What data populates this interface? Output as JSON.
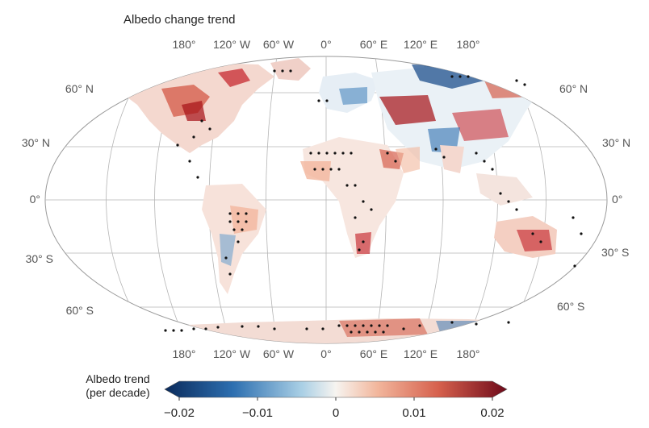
{
  "title": "Albedo change trend",
  "graticule": {
    "lon_labels": [
      "180°",
      "120° W",
      "60° W",
      "0°",
      "60° E",
      "120° E",
      "180°"
    ],
    "lat_labels_left": [
      "60° N",
      "30° N",
      "0°",
      "30° S",
      "60° S"
    ],
    "lat_labels_right": [
      "60° N",
      "30° N",
      "0°",
      "30° S",
      "60° S"
    ]
  },
  "colorbar": {
    "label_line1": "Albedo trend",
    "label_line2": "(per decade)",
    "ticks": [
      "−0.02",
      "−0.01",
      "0",
      "0.01",
      "0.02"
    ],
    "min": -0.02,
    "max": 0.02,
    "colors": [
      "#0b2b5c",
      "#2d6fb0",
      "#a9cfe5",
      "#f7f4f0",
      "#f2b79d",
      "#d6604d",
      "#6e0a1a"
    ]
  },
  "colors": {
    "negative": "#2d6fb0",
    "positive": "#c9343a",
    "significance_dot": "#111111"
  }
}
